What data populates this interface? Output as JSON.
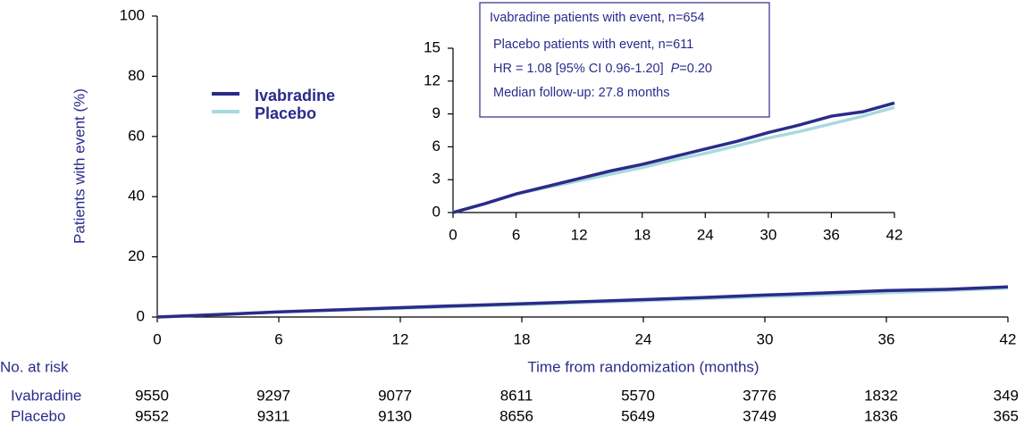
{
  "chart_data": [
    {
      "type": "line",
      "ylabel": "Patients with event  (%)",
      "xlabel": "Time from randomization (months)",
      "x": [
        0,
        3,
        6,
        9,
        12,
        15,
        18,
        21,
        24,
        27,
        30,
        33,
        36,
        39,
        42
      ],
      "series": [
        {
          "name": "Ivabradine",
          "color": "#2b2b8a",
          "values": [
            0,
            0.8,
            1.7,
            2.4,
            3.1,
            3.8,
            4.4,
            5.1,
            5.8,
            6.5,
            7.3,
            8.0,
            8.8,
            9.2,
            10.0
          ]
        },
        {
          "name": "Placebo",
          "color": "#a8dadc",
          "values": [
            0,
            0.8,
            1.7,
            2.3,
            2.9,
            3.5,
            4.1,
            4.8,
            5.4,
            6.1,
            6.8,
            7.4,
            8.1,
            8.8,
            9.6
          ]
        }
      ],
      "xlim": [
        0,
        42
      ],
      "xticks": [
        0,
        6,
        12,
        18,
        24,
        30,
        36,
        42
      ],
      "ylim": [
        0,
        100
      ],
      "yticks": [
        0,
        20,
        40,
        60,
        80,
        100
      ],
      "at_risk": {
        "label": "No. at risk",
        "rows": [
          {
            "name": "Ivabradine",
            "values": [
              9550,
              9297,
              9077,
              8611,
              5570,
              3776,
              1832,
              349
            ]
          },
          {
            "name": "Placebo",
            "values": [
              9552,
              9311,
              9130,
              8656,
              5649,
              3749,
              1836,
              365
            ]
          }
        ]
      }
    },
    {
      "type": "line",
      "xlim": [
        0,
        42
      ],
      "xticks": [
        0,
        6,
        12,
        18,
        24,
        30,
        36,
        42
      ],
      "ylim": [
        0,
        15
      ],
      "yticks": [
        0,
        3,
        6,
        9,
        12,
        15
      ],
      "annotations": [
        "Ivabradine patients with event, n=654",
        "Placebo patients with event, n=611",
        "HR = 1.08 [95% CI 0.96-1.20]",
        "P",
        "=0.20",
        "Median follow-up:  27.8 months"
      ]
    }
  ]
}
